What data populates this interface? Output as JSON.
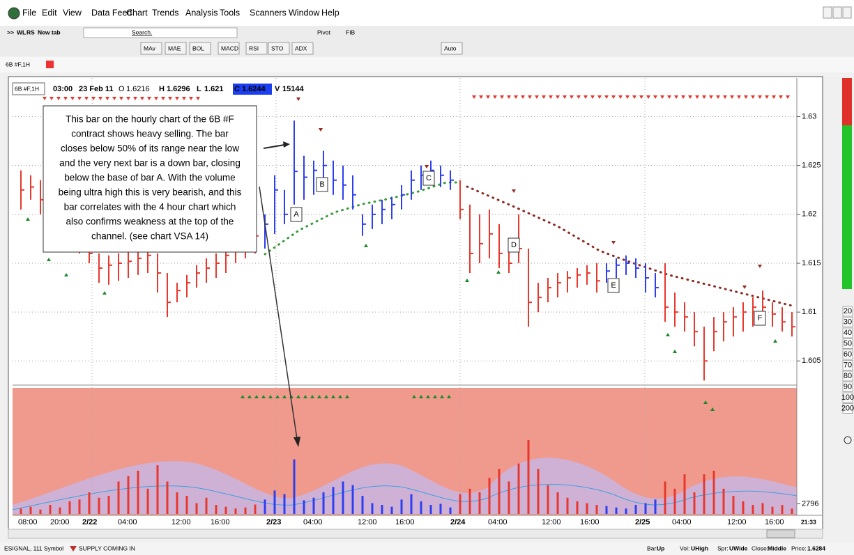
{
  "menu": [
    "File",
    "Edit",
    "View",
    "Data Feed",
    "Chart",
    "Trends",
    "Analysis",
    "Tools",
    "Scanners",
    "Window",
    "Help"
  ],
  "toolbar": {
    "buttons1": [
      ">>",
      "WL",
      "RS",
      "New tab"
    ],
    "search": "Search.",
    "pivot": "Pivot",
    "fib": "FIB",
    "buttons2": [
      "MAv",
      "MAE",
      "BOL",
      "MACD",
      "RSI",
      "STO",
      "ADX",
      "Auto"
    ]
  },
  "tab": "6B #F,1H",
  "chart_header": {
    "symbol": "6B #F,1H",
    "time": "03:00",
    "date": "23 Feb 11",
    "fields": [
      {
        "key": "O",
        "value": 1.6216
      },
      {
        "key": "H",
        "value": 1.6296
      },
      {
        "key": "L",
        "value": 1.621
      },
      {
        "key": "C",
        "value": 1.6244
      },
      {
        "key": "V",
        "value": 15144
      }
    ]
  },
  "annotation": {
    "lines": [
      "This bar on the hourly chart of the 6B #F",
      "contract shows heavy selling. The bar",
      "closes below 50% of its range near the low",
      "and the very next bar is a down bar, closing",
      "below the base of bar A. With the volume",
      "being ultra high this is very bearish, and this",
      "bar correlates with the 4 hour chart which",
      "also confirms weakness at the top of the",
      "channel. (see chart VSA 14)"
    ]
  },
  "labels": [
    "A",
    "B",
    "C",
    "D",
    "E",
    "F"
  ],
  "price": {
    "ylim": [
      1.6026,
      1.6336
    ],
    "yticks": [
      1.605,
      1.61,
      1.615,
      1.62,
      1.625,
      1.63
    ],
    "colors": {
      "red": "#e8372c",
      "blue": "#2d3ff0"
    },
    "high": [
      1.6245,
      1.624,
      1.6235,
      1.623,
      1.622,
      1.6205,
      1.6195,
      1.618,
      1.616,
      1.6158,
      1.616,
      1.6162,
      1.6165,
      1.6168,
      1.616,
      1.614,
      1.613,
      1.6138,
      1.6148,
      1.6155,
      1.616,
      1.6168,
      1.6175,
      1.618,
      1.6185,
      1.62,
      1.624,
      1.6225,
      1.6296,
      1.626,
      1.6255,
      1.6265,
      1.6255,
      1.625,
      1.624,
      1.62,
      1.621,
      1.6215,
      1.6218,
      1.623,
      1.6245,
      1.625,
      1.6255,
      1.625,
      1.6245,
      1.6235,
      1.621,
      1.62,
      1.6205,
      1.619,
      1.6175,
      1.62,
      1.6165,
      1.613,
      1.6135,
      1.614,
      1.6142,
      1.6145,
      1.6148,
      1.615,
      1.615,
      1.6155,
      1.6158,
      1.6155,
      1.615,
      1.614,
      1.615,
      1.612,
      1.611,
      1.61,
      1.6085,
      1.6095,
      1.61,
      1.6105,
      1.611,
      1.6115,
      1.6122,
      1.611,
      1.6105,
      1.61
    ],
    "low": [
      1.6205,
      1.6215,
      1.62,
      1.619,
      1.618,
      1.617,
      1.616,
      1.615,
      1.613,
      1.6128,
      1.6132,
      1.6135,
      1.6138,
      1.614,
      1.612,
      1.6095,
      1.611,
      1.6115,
      1.6125,
      1.613,
      1.6135,
      1.614,
      1.615,
      1.6155,
      1.616,
      1.6165,
      1.618,
      1.619,
      1.621,
      1.6215,
      1.622,
      1.6228,
      1.622,
      1.6215,
      1.6205,
      1.6178,
      1.6185,
      1.619,
      1.6195,
      1.6205,
      1.6215,
      1.6225,
      1.623,
      1.6228,
      1.6225,
      1.6195,
      1.614,
      1.615,
      1.6155,
      1.6145,
      1.614,
      1.615,
      1.6085,
      1.61,
      1.611,
      1.6115,
      1.612,
      1.6125,
      1.6128,
      1.612,
      1.613,
      1.6135,
      1.6138,
      1.6135,
      1.612,
      1.6115,
      1.609,
      1.6085,
      1.608,
      1.6065,
      1.603,
      1.606,
      1.607,
      1.6075,
      1.608,
      1.6085,
      1.609,
      1.6085,
      1.608,
      1.6075
    ],
    "close": [
      1.6225,
      1.6228,
      1.6215,
      1.6205,
      1.6195,
      1.6185,
      1.617,
      1.616,
      1.6145,
      1.6148,
      1.615,
      1.6152,
      1.6155,
      1.6158,
      1.614,
      1.611,
      1.6122,
      1.613,
      1.614,
      1.6145,
      1.615,
      1.6158,
      1.6165,
      1.6172,
      1.6178,
      1.619,
      1.6225,
      1.62,
      1.6244,
      1.6238,
      1.6245,
      1.625,
      1.6235,
      1.623,
      1.622,
      1.619,
      1.62,
      1.6205,
      1.621,
      1.622,
      1.6235,
      1.624,
      1.6245,
      1.624,
      1.6235,
      1.6205,
      1.616,
      1.617,
      1.618,
      1.616,
      1.615,
      1.6165,
      1.611,
      1.6115,
      1.6125,
      1.613,
      1.6135,
      1.6138,
      1.614,
      1.6132,
      1.6142,
      1.6148,
      1.615,
      1.6145,
      1.6135,
      1.6125,
      1.6105,
      1.61,
      1.6095,
      1.608,
      1.605,
      1.608,
      1.609,
      1.6095,
      1.61,
      1.6105,
      1.6105,
      1.6098,
      1.609,
      1.6085
    ],
    "bar_color": [
      "red",
      "red",
      "red",
      "red",
      "red",
      "red",
      "red",
      "red",
      "red",
      "red",
      "red",
      "red",
      "red",
      "red",
      "red",
      "red",
      "red",
      "red",
      "red",
      "red",
      "red",
      "red",
      "red",
      "red",
      "red",
      "blue",
      "blue",
      "blue",
      "blue",
      "blue",
      "blue",
      "blue",
      "blue",
      "blue",
      "blue",
      "blue",
      "blue",
      "blue",
      "blue",
      "blue",
      "blue",
      "blue",
      "blue",
      "blue",
      "blue",
      "red",
      "red",
      "red",
      "red",
      "red",
      "red",
      "red",
      "red",
      "red",
      "red",
      "red",
      "red",
      "red",
      "red",
      "red",
      "blue",
      "blue",
      "blue",
      "blue",
      "blue",
      "blue",
      "red",
      "red",
      "red",
      "red",
      "red",
      "red",
      "red",
      "red",
      "red",
      "red",
      "red",
      "red",
      "red",
      "red"
    ]
  },
  "volume": {
    "ylim": [
      0,
      35000
    ],
    "yticks": [
      2796
    ],
    "values": [
      1500,
      2000,
      1200,
      2500,
      1800,
      3500,
      4000,
      6000,
      4500,
      5000,
      9000,
      10500,
      12000,
      7000,
      13500,
      9000,
      6000,
      5000,
      3000,
      4500,
      2500,
      2000,
      1500,
      1800,
      2600,
      4000,
      6500,
      5500,
      15144,
      3800,
      4500,
      6000,
      7500,
      9000,
      8000,
      5000,
      3000,
      2500,
      2000,
      4000,
      5500,
      3500,
      2500,
      2800,
      1800,
      5500,
      7000,
      6000,
      10000,
      12500,
      9000,
      14000,
      20500,
      12500,
      8000,
      6000,
      4500,
      3500,
      3000,
      2500,
      2200,
      1800,
      1500,
      2500,
      3000,
      4000,
      9000,
      7000,
      11000,
      6000,
      11000,
      12000,
      7000,
      5000,
      3500,
      2500,
      3000,
      2000,
      2500,
      1500
    ]
  },
  "time_axis": [
    "08:00",
    "20:00",
    "2/22",
    "04:00",
    "12:00",
    "16:00",
    "2/23",
    "04:00",
    "12:00",
    "16:00",
    "2/24",
    "04:00",
    "12:00",
    "16:00",
    "2/25",
    "04:00",
    "12:00",
    "16:00"
  ],
  "clock": "21:33",
  "side_scale": [
    20,
    30,
    40,
    50,
    60,
    70,
    80,
    90,
    100,
    200
  ],
  "status": {
    "left": "ESIGNAL, 111 Symbol",
    "signal": "SUPPLY COMING IN",
    "fields": [
      {
        "key": "Bar:",
        "value": "Up"
      },
      {
        "key": "Vol:",
        "value": "UHigh"
      },
      {
        "key": "Spr:",
        "value": "UWide"
      },
      {
        "key": "Close:",
        "value": "Middle"
      },
      {
        "key": "Price:",
        "value": 1.6284
      }
    ]
  }
}
